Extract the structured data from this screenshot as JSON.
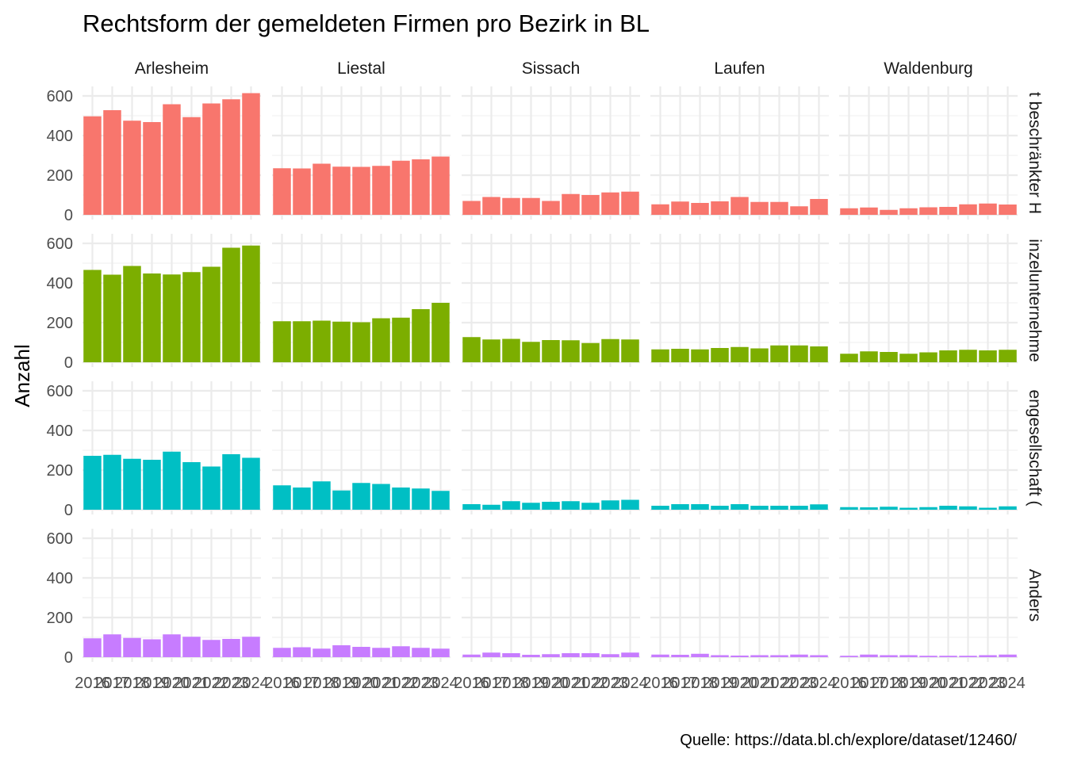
{
  "chart_data": {
    "type": "bar",
    "title": "Rechtsform der gemeldeten Firmen pro Bezirk in BL",
    "xlabel": "",
    "ylabel": "Anzahl",
    "caption": "Quelle: https://data.bl.ch/explore/dataset/12460/",
    "ylim": [
      0,
      650
    ],
    "y_ticks": [
      0,
      200,
      400,
      600
    ],
    "x": [
      "2016",
      "2017",
      "2018",
      "2019",
      "2020",
      "2021",
      "2022",
      "2023",
      "2024"
    ],
    "x_tick_labels": [
      "2016",
      "2017",
      "2018",
      "2019",
      "2020",
      "2021",
      "2022",
      "2023",
      "2024"
    ],
    "columns": [
      "Arlesheim",
      "Liestal",
      "Sissach",
      "Laufen",
      "Waldenburg"
    ],
    "rows": [
      {
        "strip_label": "t beschränkter H",
        "color": "#F8766D",
        "values": {
          "Arlesheim": [
            497,
            528,
            475,
            468,
            558,
            493,
            562,
            583,
            614
          ],
          "Liestal": [
            235,
            234,
            258,
            243,
            242,
            247,
            273,
            280,
            294
          ],
          "Sissach": [
            70,
            90,
            85,
            85,
            70,
            105,
            100,
            113,
            117
          ],
          "Laufen": [
            53,
            67,
            60,
            68,
            90,
            65,
            65,
            43,
            80
          ],
          "Waldenburg": [
            33,
            37,
            25,
            33,
            38,
            40,
            53,
            57,
            52
          ]
        }
      },
      {
        "strip_label": "inzelunternehme",
        "color": "#7CAE00",
        "values": {
          "Arlesheim": [
            466,
            442,
            486,
            448,
            443,
            455,
            482,
            578,
            589
          ],
          "Liestal": [
            207,
            207,
            210,
            205,
            202,
            222,
            225,
            268,
            300
          ],
          "Sissach": [
            127,
            115,
            118,
            103,
            112,
            111,
            97,
            117,
            115
          ],
          "Laufen": [
            65,
            68,
            65,
            72,
            77,
            70,
            85,
            85,
            80
          ],
          "Waldenburg": [
            43,
            55,
            52,
            43,
            50,
            60,
            63,
            60,
            63
          ]
        }
      },
      {
        "strip_label": "engesellschaft (",
        "color": "#00BFC4",
        "values": {
          "Arlesheim": [
            272,
            277,
            257,
            252,
            293,
            240,
            218,
            280,
            262
          ],
          "Liestal": [
            123,
            112,
            143,
            97,
            135,
            130,
            112,
            107,
            95
          ],
          "Sissach": [
            28,
            25,
            43,
            35,
            40,
            43,
            35,
            47,
            50
          ],
          "Laufen": [
            20,
            28,
            28,
            20,
            28,
            20,
            20,
            20,
            27
          ],
          "Waldenburg": [
            13,
            12,
            15,
            10,
            13,
            20,
            17,
            10,
            17
          ]
        }
      },
      {
        "strip_label": "Anders",
        "color": "#C77CFF",
        "values": {
          "Arlesheim": [
            95,
            115,
            97,
            90,
            115,
            103,
            87,
            92,
            103
          ],
          "Liestal": [
            47,
            50,
            43,
            60,
            52,
            47,
            55,
            47,
            43
          ],
          "Sissach": [
            13,
            23,
            20,
            12,
            15,
            20,
            20,
            15,
            23
          ],
          "Laufen": [
            13,
            12,
            17,
            10,
            8,
            10,
            10,
            13,
            10
          ],
          "Waldenburg": [
            7,
            13,
            10,
            10,
            7,
            7,
            7,
            10,
            13
          ]
        }
      }
    ],
    "grid": true,
    "legend": "none"
  }
}
